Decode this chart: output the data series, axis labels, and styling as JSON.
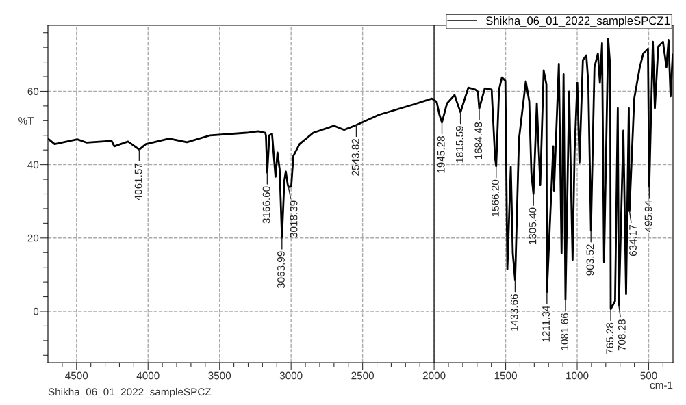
{
  "chart_data": {
    "type": "line",
    "xlabel": "cm-1",
    "ylabel": "%T",
    "xlim": [
      4700,
      330
    ],
    "ylim": [
      -14,
      78
    ],
    "xticks": [
      {
        "value": 4600,
        "label": null
      },
      4500,
      {
        "value": 4400,
        "label": null
      },
      {
        "value": 4300,
        "label": null
      },
      {
        "value": 4200,
        "label": null
      },
      {
        "value": 4100,
        "label": null
      },
      4000,
      {
        "value": 3900,
        "label": null
      },
      {
        "value": 3800,
        "label": null
      },
      {
        "value": 3700,
        "label": null
      },
      {
        "value": 3600,
        "label": null
      },
      3500,
      {
        "value": 3400,
        "label": null
      },
      {
        "value": 3300,
        "label": null
      },
      {
        "value": 3200,
        "label": null
      },
      {
        "value": 3100,
        "label": null
      },
      3000,
      {
        "value": 2900,
        "label": null
      },
      {
        "value": 2800,
        "label": null
      },
      {
        "value": 2700,
        "label": null
      },
      {
        "value": 2600,
        "label": null
      },
      2500,
      {
        "value": 2400,
        "label": null
      },
      {
        "value": 2300,
        "label": null
      },
      {
        "value": 2200,
        "label": null
      },
      {
        "value": 2100,
        "label": null
      },
      2000,
      {
        "value": 1900,
        "label": null
      },
      {
        "value": 1800,
        "label": null
      },
      {
        "value": 1700,
        "label": null
      },
      {
        "value": 1600,
        "label": null
      },
      1500,
      {
        "value": 1400,
        "label": null
      },
      {
        "value": 1300,
        "label": null
      },
      {
        "value": 1200,
        "label": null
      },
      {
        "value": 1100,
        "label": null
      },
      1000,
      {
        "value": 900,
        "label": null
      },
      {
        "value": 800,
        "label": null
      },
      {
        "value": 700,
        "label": null
      },
      {
        "value": 600,
        "label": null
      },
      500,
      {
        "value": 400,
        "label": null
      }
    ],
    "yticks": [
      {
        "value": -12,
        "label": null
      },
      {
        "value": -8,
        "label": null
      },
      {
        "value": -4,
        "label": null
      },
      0,
      {
        "value": 4,
        "label": null
      },
      {
        "value": 8,
        "label": null
      },
      {
        "value": 12,
        "label": null
      },
      {
        "value": 16,
        "label": null
      },
      20,
      {
        "value": 24,
        "label": null
      },
      {
        "value": 28,
        "label": null
      },
      {
        "value": 32,
        "label": null
      },
      {
        "value": 36,
        "label": null
      },
      40,
      {
        "value": 44,
        "label": null
      },
      {
        "value": 48,
        "label": null
      },
      {
        "value": 52,
        "label": null
      },
      {
        "value": 56,
        "label": null
      },
      60,
      {
        "value": 64,
        "label": null
      },
      {
        "value": 68,
        "label": null
      },
      {
        "value": 72,
        "label": null
      },
      {
        "value": 76,
        "label": null
      }
    ],
    "grid": true,
    "legend": "top right",
    "marker": "none",
    "line_style": "solid",
    "ref_lines": [
      {
        "axis": "x",
        "value": 2000,
        "label": null,
        "color": "#404040",
        "line_style": "solid"
      }
    ],
    "series": [
      {
        "name": "Shikha_06_01_2022_sampleSPCZ1",
        "color": "#000000",
        "x": [
          4700,
          4653,
          4495,
          4428,
          4255,
          4236,
          4140,
          4061.57,
          4015,
          3853,
          3728,
          3565,
          3311,
          3230,
          3181,
          3176,
          3166.6,
          3152,
          3133,
          3109,
          3095,
          3080,
          3063.99,
          3047,
          3037,
          3023,
          3018.39,
          2999,
          2984,
          2941,
          2845,
          2701,
          2629,
          2543.82,
          2385,
          2145,
          2016,
          1982,
          1963,
          1945.28,
          1910,
          1857,
          1833,
          1815.59,
          1761,
          1713,
          1694,
          1684.48,
          1646,
          1598,
          1574,
          1566.2,
          1546,
          1526,
          1502,
          1488,
          1464,
          1450,
          1433.66,
          1407,
          1359,
          1335,
          1320,
          1305.4,
          1282,
          1258,
          1234,
          1215,
          1211.34,
          1167,
          1162,
          1128,
          1109,
          1095,
          1081.66,
          1056,
          1032,
          1018,
          999,
          984,
          960,
          936,
          922,
          903.52,
          879,
          855,
          841,
          826,
          812,
          783,
          769,
          765.28,
          735,
          716,
          708.28,
          677,
          658,
          639,
          634.17,
          601,
          562,
          538,
          505,
          495.94,
          471,
          457,
          433,
          400,
          376,
          361,
          347,
          332
        ],
        "values": [
          47.1,
          45.6,
          46.9,
          46.0,
          46.5,
          45.0,
          46.3,
          44.1,
          45.6,
          47.1,
          46.1,
          48.0,
          48.7,
          49.1,
          48.7,
          48.0,
          37.8,
          48.0,
          48.4,
          36.7,
          43.3,
          38.7,
          20.1,
          35.7,
          38.1,
          34.4,
          33.9,
          34.0,
          42.4,
          45.6,
          48.7,
          50.6,
          49.5,
          50.8,
          53.6,
          56.4,
          58.0,
          57.1,
          53.6,
          51.5,
          56.7,
          59.0,
          56.2,
          54.3,
          61.0,
          60.5,
          59.9,
          55.3,
          60.8,
          60.5,
          41.9,
          39.6,
          60.5,
          63.8,
          62.9,
          11.5,
          39.4,
          15.8,
          8.4,
          46.9,
          62.7,
          57.3,
          37.6,
          32.0,
          56.7,
          34.4,
          65.7,
          61.8,
          5.2,
          45.0,
          32.9,
          67.5,
          15.8,
          64.7,
          3.2,
          59.9,
          14.0,
          43.7,
          62.3,
          40.6,
          68.5,
          69.8,
          62.3,
          22.0,
          66.6,
          70.3,
          62.3,
          73.1,
          13.4,
          74.4,
          66.6,
          0.6,
          2.8,
          55.4,
          1.5,
          49.3,
          4.7,
          55.4,
          27.3,
          58.0,
          66.6,
          70.3,
          71.6,
          33.9,
          73.5,
          55.4,
          72.2,
          73.5,
          66.6,
          74.0,
          58.6,
          70.0
        ]
      }
    ],
    "annotations": [
      {
        "text": "4061.57",
        "x": 4061.57,
        "y": 44.1
      },
      {
        "text": "3166.60",
        "x": 3166.6,
        "y": 37.8
      },
      {
        "text": "3063.99",
        "x": 3063.99,
        "y": 20.1
      },
      {
        "text": "3018.39",
        "x": 3018.39,
        "y": 33.9
      },
      {
        "text": "2543.82",
        "x": 2543.82,
        "y": 50.8
      },
      {
        "text": "1945.28",
        "x": 1945.28,
        "y": 51.5
      },
      {
        "text": "1815.59",
        "x": 1815.59,
        "y": 54.3
      },
      {
        "text": "1684.48",
        "x": 1684.48,
        "y": 55.3
      },
      {
        "text": "1566.20",
        "x": 1566.2,
        "y": 39.6
      },
      {
        "text": "1433.66",
        "x": 1433.66,
        "y": 8.4
      },
      {
        "text": "1305.40",
        "x": 1305.4,
        "y": 32.0
      },
      {
        "text": "1211.34",
        "x": 1211.34,
        "y": 5.2
      },
      {
        "text": "1081.66",
        "x": 1081.66,
        "y": 3.2
      },
      {
        "text": "903.52",
        "x": 903.52,
        "y": 22.0
      },
      {
        "text": "765.28",
        "x": 765.28,
        "y": 0.6
      },
      {
        "text": "708.28",
        "x": 708.28,
        "y": 1.5
      },
      {
        "text": "634.17",
        "x": 634.17,
        "y": 27.3
      },
      {
        "text": "495.94",
        "x": 495.94,
        "y": 33.9
      },
      "Shikha_06_01_2022_sampleSPCZ"
    ]
  }
}
